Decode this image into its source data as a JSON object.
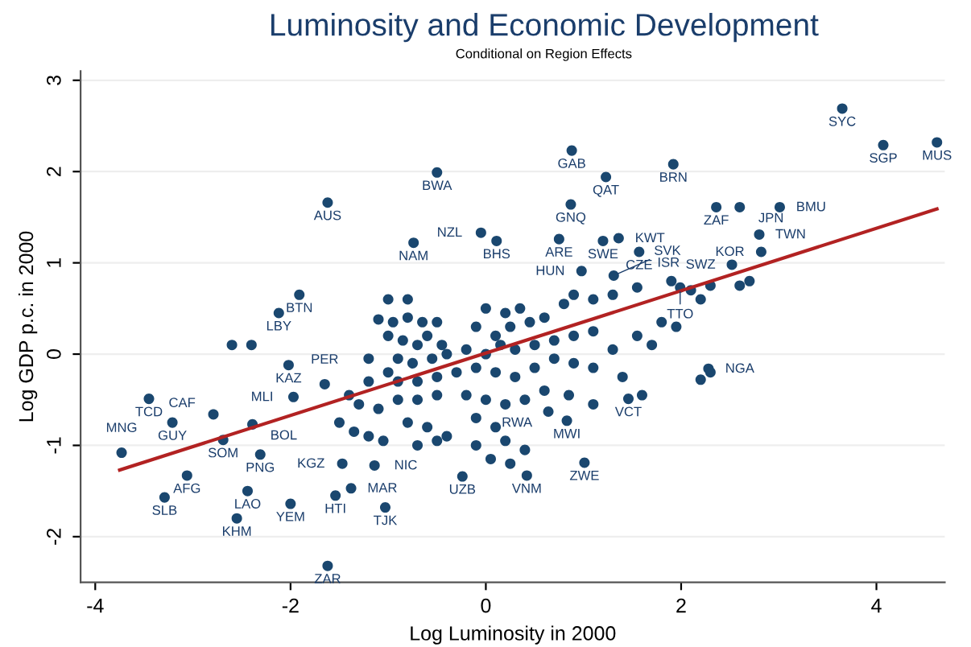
{
  "chart_data": {
    "type": "scatter",
    "title": "Luminosity and Economic Development",
    "subtitle": "Conditional on Region Effects",
    "xlabel": "Log Luminosity in 2000",
    "ylabel": "Log GDP p.c. in 2000",
    "xlim": [
      -4.15,
      4.7
    ],
    "ylim": [
      -2.5,
      3.1
    ],
    "xticks": [
      -4,
      -2,
      0,
      2,
      4
    ],
    "yticks": [
      -2,
      -1,
      0,
      1,
      2,
      3
    ],
    "grid": "y",
    "series": [
      {
        "marker": "circle",
        "color": "#1a476f",
        "x": [
          3.65,
          4.07,
          4.62,
          0.88,
          1.92,
          1.23,
          -0.5,
          -1.62,
          0.87,
          2.36,
          2.6,
          3.01,
          -0.74,
          -0.05,
          0.11,
          0.75,
          1.2,
          1.36,
          1.57,
          2.8,
          2.82,
          2.52,
          0.98,
          1.31,
          1.55,
          1.99,
          -1.91,
          -2.12,
          -2.02,
          -1.65,
          -1.97,
          -3.45,
          -2.79,
          -3.21,
          -2.39,
          -2.69,
          -3.73,
          -2.31,
          -3.06,
          -3.29,
          -2.44,
          -2.55,
          -2.0,
          -1.54,
          -1.38,
          -1.03,
          -1.47,
          -1.14,
          -1.62,
          1.01,
          0.42,
          -0.24,
          0.83,
          0.64,
          1.46,
          2.28,
          -1.0,
          -0.8,
          -1.1,
          -0.95,
          -0.8,
          -0.65,
          -0.5,
          -1.0,
          -0.85,
          -0.7,
          -0.6,
          -0.45,
          -1.2,
          -0.9,
          -0.75,
          -0.55,
          -0.4,
          -0.2,
          -1.2,
          -1.0,
          -0.9,
          -0.7,
          -0.5,
          -0.3,
          -1.4,
          -1.3,
          -1.1,
          -0.9,
          -0.7,
          -0.5,
          -1.5,
          -1.35,
          -1.2,
          -1.05,
          -0.8,
          -0.6,
          -0.5,
          -0.7,
          -0.4,
          0.0,
          0.2,
          0.35,
          -0.1,
          0.1,
          0.25,
          0.45,
          0.6,
          0.8,
          0.9,
          1.1,
          1.3,
          0.0,
          0.15,
          0.3,
          0.5,
          0.7,
          0.9,
          1.1,
          1.3,
          1.55,
          1.7,
          -0.1,
          0.1,
          0.3,
          0.5,
          0.7,
          0.9,
          1.1,
          1.4,
          1.6,
          -0.2,
          0.0,
          0.2,
          0.4,
          0.6,
          0.85,
          1.1,
          -0.1,
          0.1,
          0.2,
          0.4,
          -0.1,
          0.05,
          0.25,
          1.9,
          2.1,
          2.3,
          2.6,
          2.2,
          2.7,
          1.8,
          1.95,
          2.3,
          2.2,
          -2.6,
          -2.4
        ],
        "values": [
          2.69,
          2.29,
          2.32,
          2.23,
          2.08,
          1.94,
          1.99,
          1.66,
          1.64,
          1.61,
          1.61,
          1.61,
          1.22,
          1.33,
          1.24,
          1.26,
          1.24,
          1.27,
          1.12,
          1.31,
          1.12,
          0.98,
          0.91,
          0.86,
          0.73,
          0.73,
          0.65,
          0.45,
          -0.12,
          -0.33,
          -0.47,
          -0.49,
          -0.66,
          -0.75,
          -0.77,
          -0.94,
          -1.08,
          -1.1,
          -1.33,
          -1.57,
          -1.5,
          -1.8,
          -1.64,
          -1.55,
          -1.47,
          -1.68,
          -1.2,
          -1.22,
          -2.32,
          -1.19,
          -1.33,
          -1.34,
          -0.73,
          -0.63,
          -0.49,
          -0.16,
          0.6,
          0.6,
          0.38,
          0.35,
          0.4,
          0.35,
          0.35,
          0.2,
          0.15,
          0.1,
          0.2,
          0.1,
          -0.05,
          -0.05,
          -0.1,
          -0.05,
          0.0,
          0.05,
          -0.3,
          -0.2,
          -0.3,
          -0.3,
          -0.25,
          -0.2,
          -0.45,
          -0.55,
          -0.6,
          -0.5,
          -0.5,
          -0.45,
          -0.75,
          -0.85,
          -0.9,
          -0.95,
          -0.75,
          -0.8,
          -0.95,
          -1.0,
          -0.9,
          0.5,
          0.45,
          0.5,
          0.3,
          0.2,
          0.3,
          0.35,
          0.4,
          0.55,
          0.65,
          0.6,
          0.65,
          0.0,
          0.1,
          0.05,
          0.1,
          0.15,
          0.2,
          0.25,
          0.05,
          0.2,
          0.1,
          -0.15,
          -0.2,
          -0.25,
          -0.15,
          -0.05,
          -0.1,
          -0.15,
          -0.25,
          -0.45,
          -0.45,
          -0.5,
          -0.55,
          -0.5,
          -0.4,
          -0.45,
          -0.55,
          -0.7,
          -0.8,
          -0.95,
          -1.05,
          -1.0,
          -1.15,
          -1.2,
          0.8,
          0.7,
          0.75,
          0.75,
          0.6,
          0.8,
          0.35,
          0.3,
          -0.2,
          -0.28,
          0.1,
          0.1
        ]
      },
      {
        "type": "line",
        "color": "#b22222",
        "x": [
          -3.75,
          4.62
        ],
        "values": [
          -1.27,
          1.59
        ]
      }
    ],
    "annotations": [
      {
        "text": "SYC",
        "x": 3.65,
        "y": 2.69
      },
      {
        "text": "SGP",
        "x": 4.07,
        "y": 2.29
      },
      {
        "text": "MUS",
        "x": 4.62,
        "y": 2.32
      },
      {
        "text": "GAB",
        "x": 0.88,
        "y": 2.23
      },
      {
        "text": "BRN",
        "x": 1.92,
        "y": 2.08
      },
      {
        "text": "QAT",
        "x": 1.23,
        "y": 1.94
      },
      {
        "text": "BWA",
        "x": -0.5,
        "y": 1.99
      },
      {
        "text": "AUS",
        "x": -1.62,
        "y": 1.66
      },
      {
        "text": "GNQ",
        "x": 0.87,
        "y": 1.64
      },
      {
        "text": "ZAF",
        "x": 2.36,
        "y": 1.61
      },
      {
        "text": "JPN",
        "x": 2.6,
        "y": 1.61
      },
      {
        "text": "BMU",
        "x": 3.01,
        "y": 1.61
      },
      {
        "text": "NAM",
        "x": -0.74,
        "y": 1.22
      },
      {
        "text": "NZL",
        "x": -0.05,
        "y": 1.33
      },
      {
        "text": "BHS",
        "x": 0.11,
        "y": 1.24
      },
      {
        "text": "ARE",
        "x": 0.75,
        "y": 1.26
      },
      {
        "text": "SWE",
        "x": 1.2,
        "y": 1.24
      },
      {
        "text": "KWT",
        "x": 1.36,
        "y": 1.27
      },
      {
        "text": "CZE",
        "x": 1.57,
        "y": 1.12
      },
      {
        "text": "TWN",
        "x": 2.8,
        "y": 1.31
      },
      {
        "text": "KOR",
        "x": 2.82,
        "y": 1.12
      },
      {
        "text": "SWZ",
        "x": 2.52,
        "y": 0.98
      },
      {
        "text": "HUN",
        "x": 0.98,
        "y": 0.91
      },
      {
        "text": "SVK",
        "x": 1.31,
        "y": 0.86
      },
      {
        "text": "ISR",
        "x": 1.55,
        "y": 0.73
      },
      {
        "text": "TTO",
        "x": 1.99,
        "y": 0.73
      },
      {
        "text": "BTN",
        "x": -1.91,
        "y": 0.65
      },
      {
        "text": "LBY",
        "x": -2.12,
        "y": 0.45
      },
      {
        "text": "KAZ",
        "x": -2.02,
        "y": -0.12
      },
      {
        "text": "PER",
        "x": -1.65,
        "y": -0.33
      },
      {
        "text": "MLI",
        "x": -1.97,
        "y": -0.47
      },
      {
        "text": "TCD",
        "x": -3.45,
        "y": -0.49
      },
      {
        "text": "CAF",
        "x": -2.79,
        "y": -0.66
      },
      {
        "text": "GUY",
        "x": -3.21,
        "y": -0.75
      },
      {
        "text": "BOL",
        "x": -2.39,
        "y": -0.77
      },
      {
        "text": "SOM",
        "x": -2.69,
        "y": -0.94
      },
      {
        "text": "MNG",
        "x": -3.73,
        "y": -1.08
      },
      {
        "text": "PNG",
        "x": -2.31,
        "y": -1.1
      },
      {
        "text": "AFG",
        "x": -3.06,
        "y": -1.33
      },
      {
        "text": "SLB",
        "x": -3.29,
        "y": -1.57
      },
      {
        "text": "LAO",
        "x": -2.44,
        "y": -1.5
      },
      {
        "text": "KHM",
        "x": -2.55,
        "y": -1.8
      },
      {
        "text": "YEM",
        "x": -2.0,
        "y": -1.64
      },
      {
        "text": "HTI",
        "x": -1.54,
        "y": -1.55
      },
      {
        "text": "MAR",
        "x": -1.38,
        "y": -1.47
      },
      {
        "text": "TJK",
        "x": -1.03,
        "y": -1.68
      },
      {
        "text": "KGZ",
        "x": -1.47,
        "y": -1.2
      },
      {
        "text": "NIC",
        "x": -1.14,
        "y": -1.22
      },
      {
        "text": "ZAR",
        "x": -1.62,
        "y": -2.32
      },
      {
        "text": "ZWE",
        "x": 1.01,
        "y": -1.19
      },
      {
        "text": "VNM",
        "x": 0.42,
        "y": -1.33
      },
      {
        "text": "UZB",
        "x": -0.24,
        "y": -1.34
      },
      {
        "text": "MWI",
        "x": 0.83,
        "y": -0.73
      },
      {
        "text": "RWA",
        "x": 0.64,
        "y": -0.63
      },
      {
        "text": "VCT",
        "x": 1.46,
        "y": -0.49
      },
      {
        "text": "NGA",
        "x": 2.28,
        "y": -0.16
      }
    ]
  }
}
